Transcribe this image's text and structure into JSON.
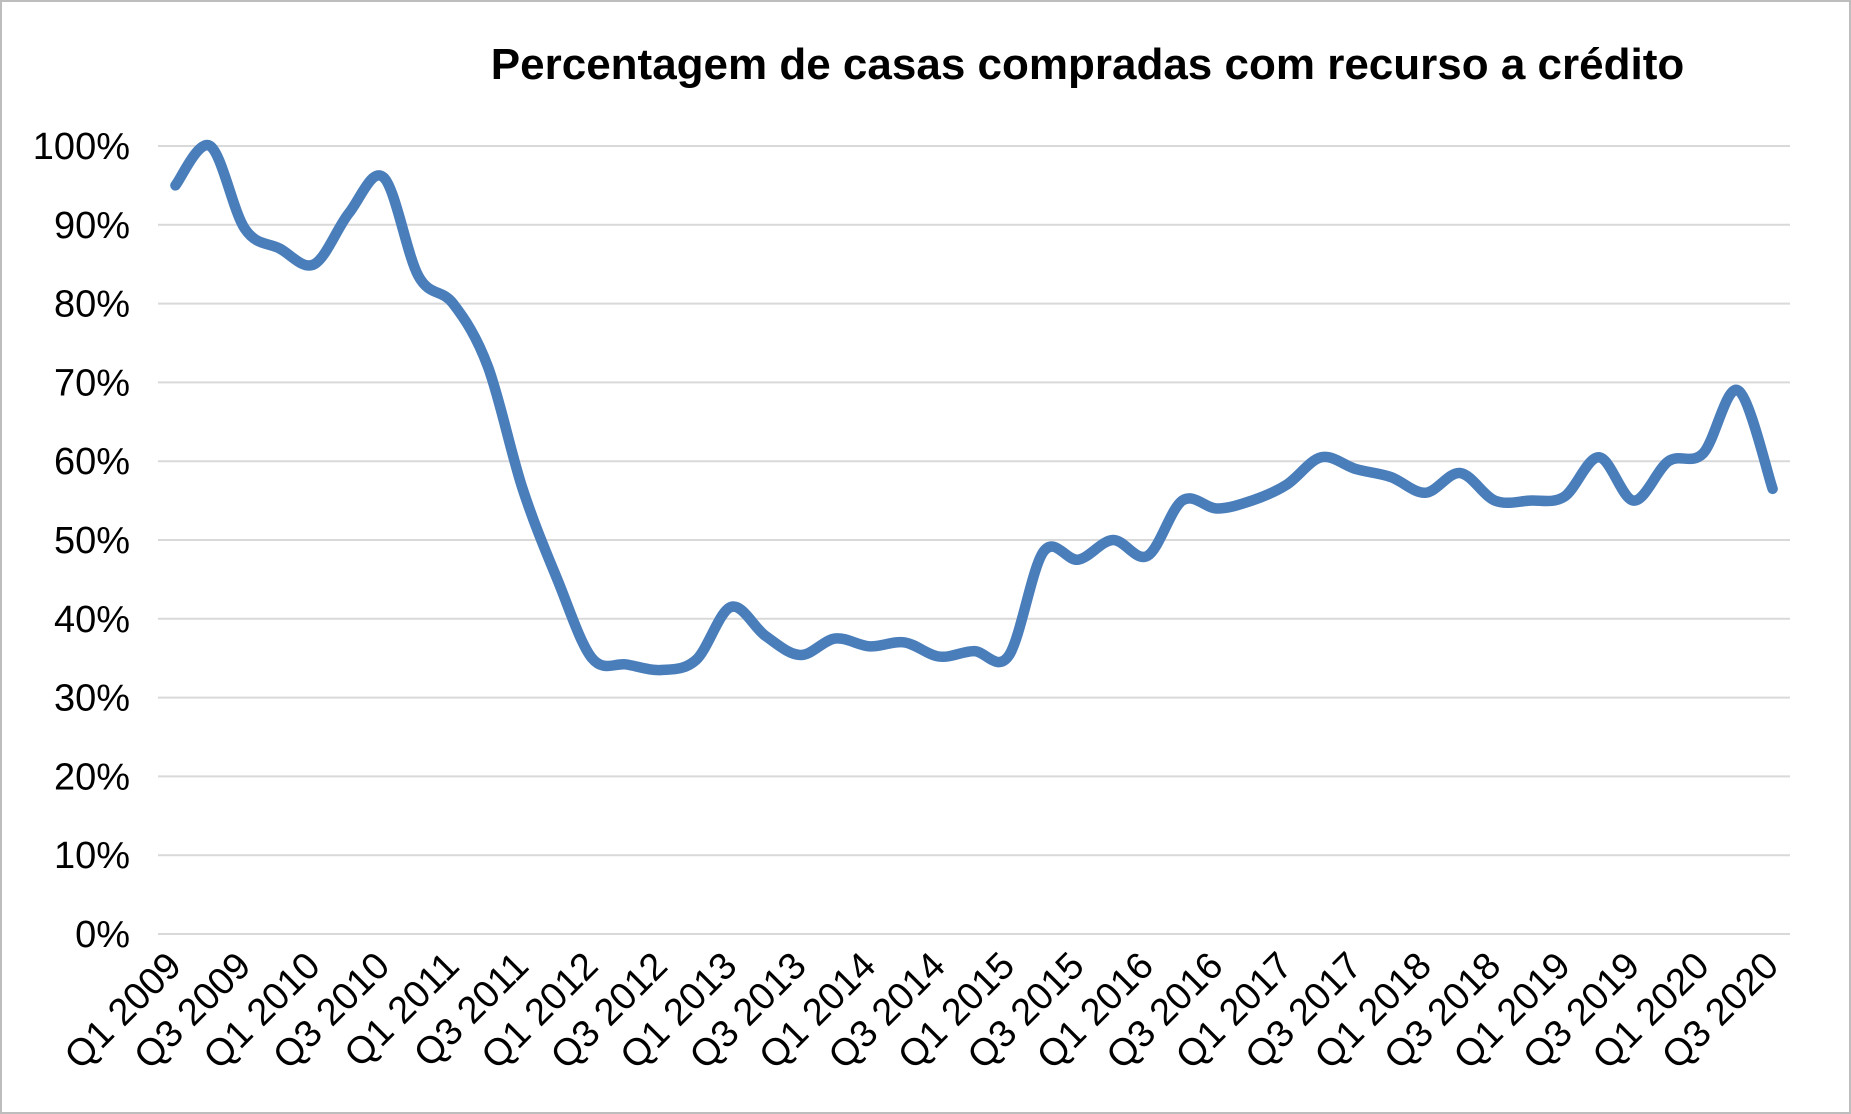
{
  "title": "Percentagem de casas compradas com recurso a crédito",
  "chart_data": {
    "type": "line",
    "title": "Percentagem de casas compradas com recurso a crédito",
    "smooth": true,
    "grid": "horizontal-only",
    "legend": "none",
    "ylim": [
      0,
      100
    ],
    "yticks": [
      0,
      10,
      20,
      30,
      40,
      50,
      60,
      70,
      80,
      90,
      100
    ],
    "y_tick_suffix": "%",
    "x_label_every": 2,
    "x_label_rotation": -45,
    "categories": [
      "Q1 2009",
      "Q2 2009",
      "Q3 2009",
      "Q4 2009",
      "Q1 2010",
      "Q2 2010",
      "Q3 2010",
      "Q4 2010",
      "Q1 2011",
      "Q2 2011",
      "Q3 2011",
      "Q4 2011",
      "Q1 2012",
      "Q2 2012",
      "Q3 2012",
      "Q4 2012",
      "Q1 2013",
      "Q2 2013",
      "Q3 2013",
      "Q4 2013",
      "Q1 2014",
      "Q2 2014",
      "Q3 2014",
      "Q4 2014",
      "Q1 2015",
      "Q2 2015",
      "Q3 2015",
      "Q4 2015",
      "Q1 2016",
      "Q2 2016",
      "Q3 2016",
      "Q4 2016",
      "Q1 2017",
      "Q2 2017",
      "Q3 2017",
      "Q4 2017",
      "Q1 2018",
      "Q2 2018",
      "Q3 2018",
      "Q4 2018",
      "Q1 2019",
      "Q2 2019",
      "Q3 2019",
      "Q4 2019",
      "Q1 2020",
      "Q2 2020",
      "Q3 2020"
    ],
    "values": [
      95,
      100,
      89.5,
      87,
      85,
      91.5,
      96,
      83.5,
      80,
      72,
      56.5,
      45,
      35,
      34.2,
      33.5,
      34.8,
      41.5,
      37.8,
      35.4,
      37.5,
      36.5,
      37,
      35.2,
      35.9,
      35.3,
      48.5,
      47.5,
      50,
      48,
      55,
      54,
      55,
      57,
      60.5,
      59,
      58,
      56,
      58.5,
      55,
      55,
      55.5,
      60.5,
      55,
      60,
      61,
      69,
      56.5
    ],
    "colors": {
      "line": "#4A7EBB",
      "grid": "#D9D9D9",
      "text": "#000000",
      "border": "#BDBDBD",
      "background": "#FFFFFF"
    }
  }
}
